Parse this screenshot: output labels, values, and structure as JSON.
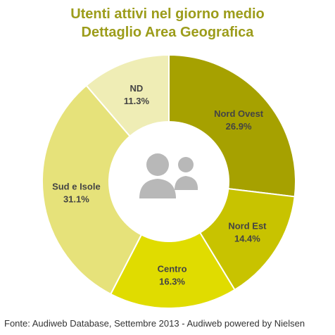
{
  "chart_data": {
    "type": "pie",
    "variant": "donut",
    "title": "Utenti attivi nel giorno medio",
    "subtitle": "Dettaglio Area Geografica",
    "categories": [
      "Nord Ovest",
      "Nord Est",
      "Centro",
      "Sud e Isole",
      "ND"
    ],
    "values": [
      26.9,
      14.4,
      16.3,
      31.1,
      11.3
    ],
    "value_labels": [
      "26.9%",
      "14.4%",
      "16.3%",
      "31.1%",
      "11.3%"
    ],
    "colors": [
      "#a6a100",
      "#c8c300",
      "#e0dc00",
      "#e6e27a",
      "#efedb5"
    ],
    "center_icon": "users-icon",
    "legend": "none"
  },
  "source": "Fonte: Audiweb Database, Settembre 2013 - Audiweb powered by Nielsen"
}
